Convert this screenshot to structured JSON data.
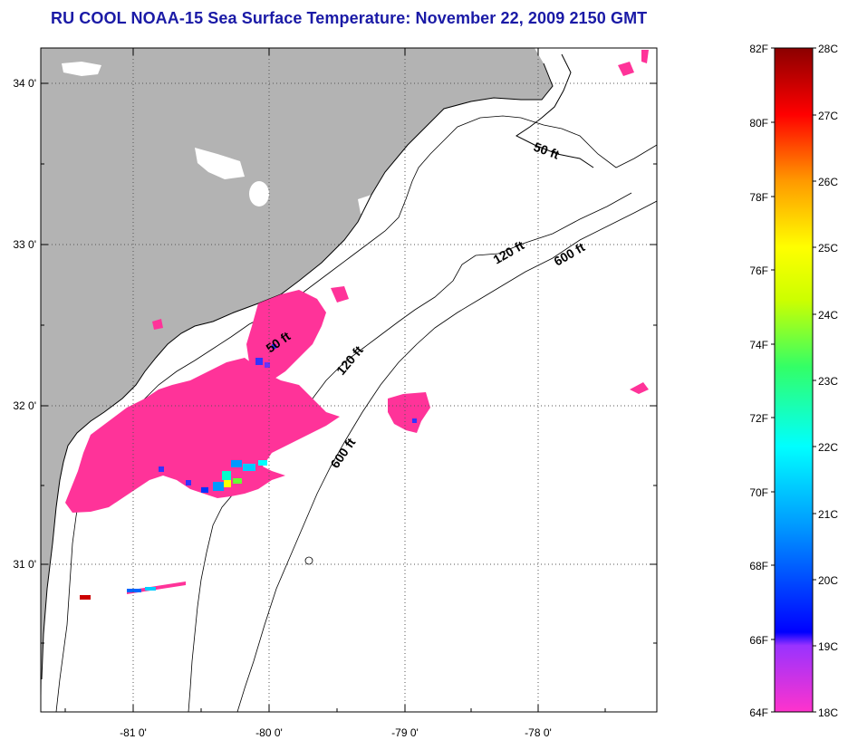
{
  "title": "RU COOL  NOAA-15  Sea Surface Temperature:  November 22, 2009 2150 GMT",
  "latitude_labels": [
    "34 0'",
    "33 0'",
    "32 0'",
    "31 0'"
  ],
  "longitude_labels": [
    "-81 0'",
    "-80 0'",
    "-79 0'",
    "-78 0'"
  ],
  "contour_labels": [
    "50 ft",
    "120 ft",
    "600 ft",
    "50 ft",
    "120 ft",
    "600 ft"
  ],
  "colorbar": {
    "fahrenheit_labels": [
      "82F",
      "80F",
      "78F",
      "76F",
      "74F",
      "72F",
      "70F",
      "68F",
      "66F",
      "64F"
    ],
    "celsius_labels": [
      "28C",
      "27C",
      "26C",
      "25C",
      "24C",
      "23C",
      "22C",
      "21C",
      "20C",
      "19C",
      "18C"
    ]
  },
  "colors": {
    "land": "#b3b3b3",
    "ocean": "#ffffff",
    "sst_pink": "#ff3399",
    "title": "#1a1aa6"
  }
}
